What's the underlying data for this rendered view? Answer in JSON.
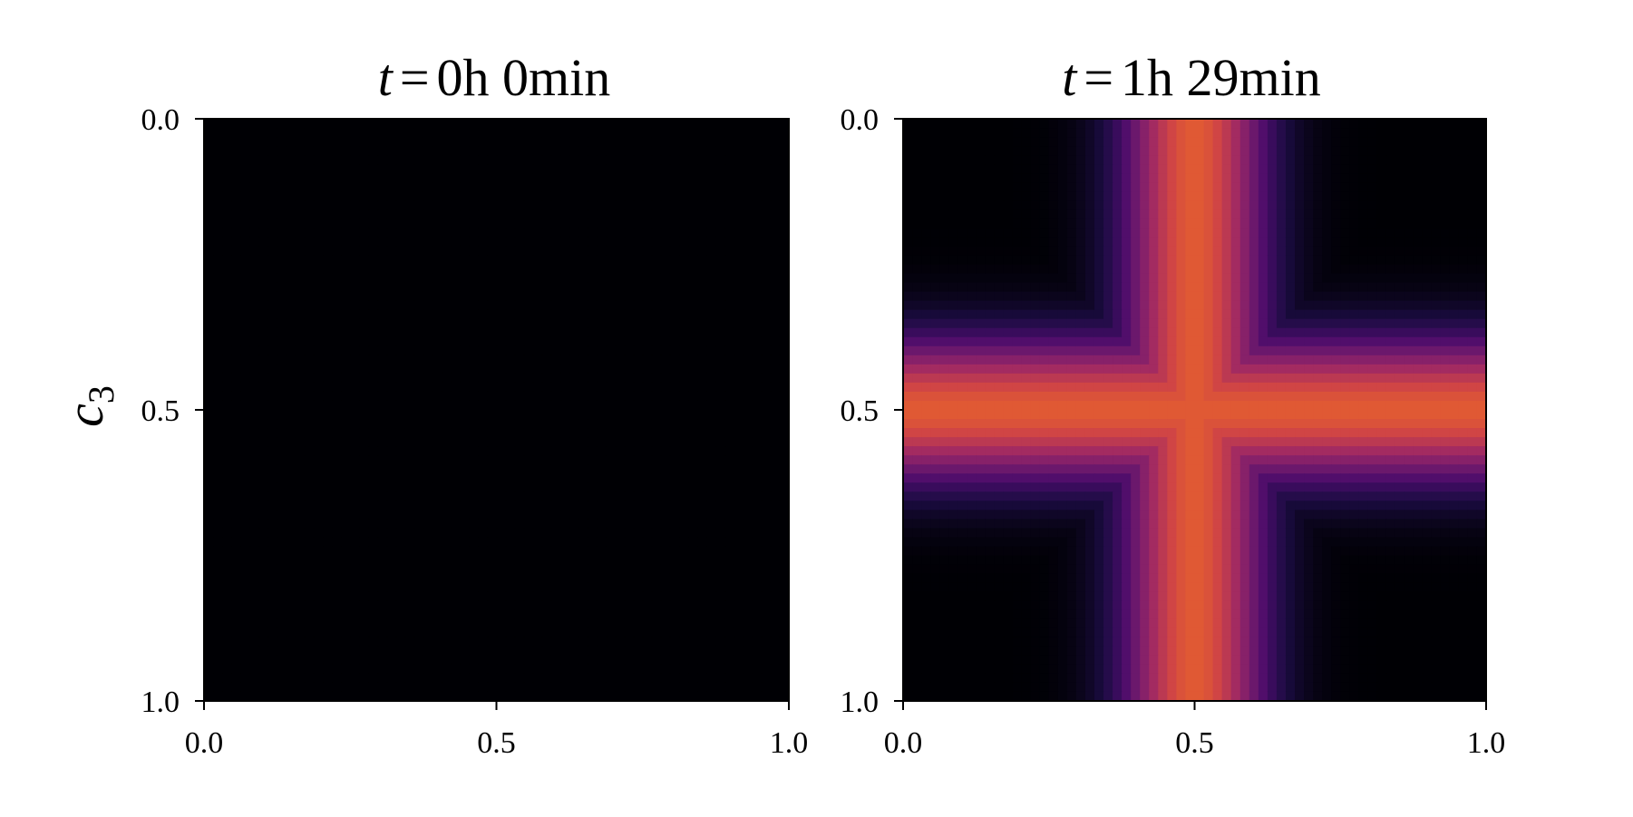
{
  "chart_data": [
    {
      "type": "heatmap",
      "title": {
        "var": "t",
        "eq": "=",
        "value": "0h 0min"
      },
      "ylabel": {
        "base": "c",
        "sub": "3"
      },
      "xticks": [
        "0.0",
        "0.5",
        "1.0"
      ],
      "yticks": [
        "0.0",
        "0.5",
        "1.0"
      ],
      "xlim": [
        0.0,
        1.0
      ],
      "ylim": [
        0.0,
        1.0
      ],
      "colormap": "inferno",
      "field": {
        "pattern": "uniform",
        "max_intensity": 0.0
      }
    },
    {
      "type": "heatmap",
      "title": {
        "var": "t",
        "eq": "=",
        "value": "1h 29min"
      },
      "ylabel": "",
      "xticks": [
        "0.0",
        "0.5",
        "1.0"
      ],
      "yticks": [
        "0.0",
        "0.5",
        "1.0"
      ],
      "xlim": [
        0.0,
        1.0
      ],
      "ylim": [
        0.0,
        1.0
      ],
      "colormap": "inferno",
      "field": {
        "pattern": "cross",
        "center_x": 0.5,
        "center_y": 0.5,
        "width": 0.12,
        "max_intensity": 0.62
      }
    }
  ],
  "colors": {
    "background": "#ffffff",
    "axis": "#000000",
    "inferno_stops": [
      "#000004",
      "#1b0c41",
      "#4a0c6b",
      "#781c6d",
      "#a52c60",
      "#cf4446",
      "#ed6925",
      "#fb9b06",
      "#f7d13d",
      "#fcffa4"
    ]
  }
}
